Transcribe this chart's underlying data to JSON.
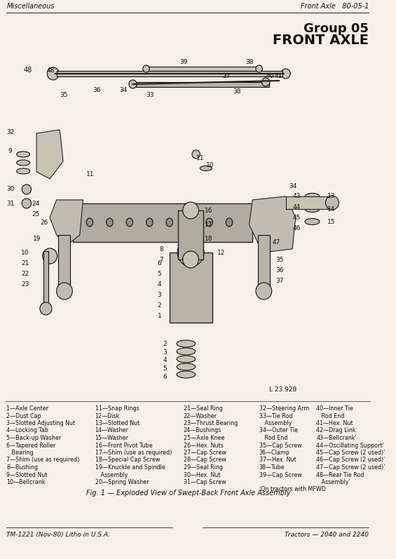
{
  "page_title_left": "Miscellaneous",
  "page_title_right": "Front Axle   80-05-1",
  "group_number": "Group 05",
  "group_title": "FRONT AXLE",
  "drawing_number": "L 23 928",
  "figure_caption": "Fig. 1 — Exploded View of Swept-Back Front Axle Assembly",
  "footer_left": "TM-1221 (Nov-80) Litho in U.S.A.",
  "footer_right": "Tractors — 2040 and 2240",
  "parts_list": [
    [
      "1—Axle Center",
      "11—Snap Rings",
      "21—Seal Ring",
      "32—Steering Arm",
      "40—Inner Tie"
    ],
    [
      "2—Dust Cap",
      "12—Disk",
      "22—Washer",
      "33—Tie Rod",
      "   Rod End"
    ],
    [
      "3—Slotted Adjusting Nut",
      "13—Slotted Nut",
      "23—Thrust Bearing",
      "   Assembly",
      "41—Hex. Nut"
    ],
    [
      "4—Locking Tab",
      "14—Washer",
      "24—Bushings",
      "34—Outer Tie",
      "42—Drag Link"
    ],
    [
      "5—Back-up Washer",
      "15—Washer",
      "25—Axle Knee",
      "   Rod End",
      "43—Bellcrank'"
    ],
    [
      "6—Tapered Roller",
      "16—Front Pivot Tube",
      "26—Hex. Nuts",
      "35—Cap Screw",
      "44—Oscillating Support'"
    ],
    [
      "   Bearing",
      "17—Shim (use as required)",
      "27—Cap Screw",
      "36—Clamp",
      "45—Cap Screw (2 used)'"
    ],
    [
      "7—Shim (use as required)",
      "18—Special Cap Screw",
      "28—Cap Screw",
      "37—Hex. Nut",
      "46—Cap Screw (2 used)'"
    ],
    [
      "8—Bushing",
      "19—Knuckle and Spindle",
      "29—Seal Ring",
      "38—Tube",
      "47—Cap Screw (2 used)'"
    ],
    [
      "9—Slotted Nut",
      "   Assembly",
      "30—Hex. Nut",
      "39—Cap Screw",
      "48—Rear Tie Rod"
    ],
    [
      "10—Bellcrank",
      "20—Spring Washer",
      "31—Cap Screw",
      "",
      "   Assembly'"
    ],
    [
      "",
      "",
      "",
      "'On tractors with MFWD",
      ""
    ]
  ],
  "bg_color": "#f5f0e8",
  "line_color": "#222222",
  "text_color": "#111111"
}
